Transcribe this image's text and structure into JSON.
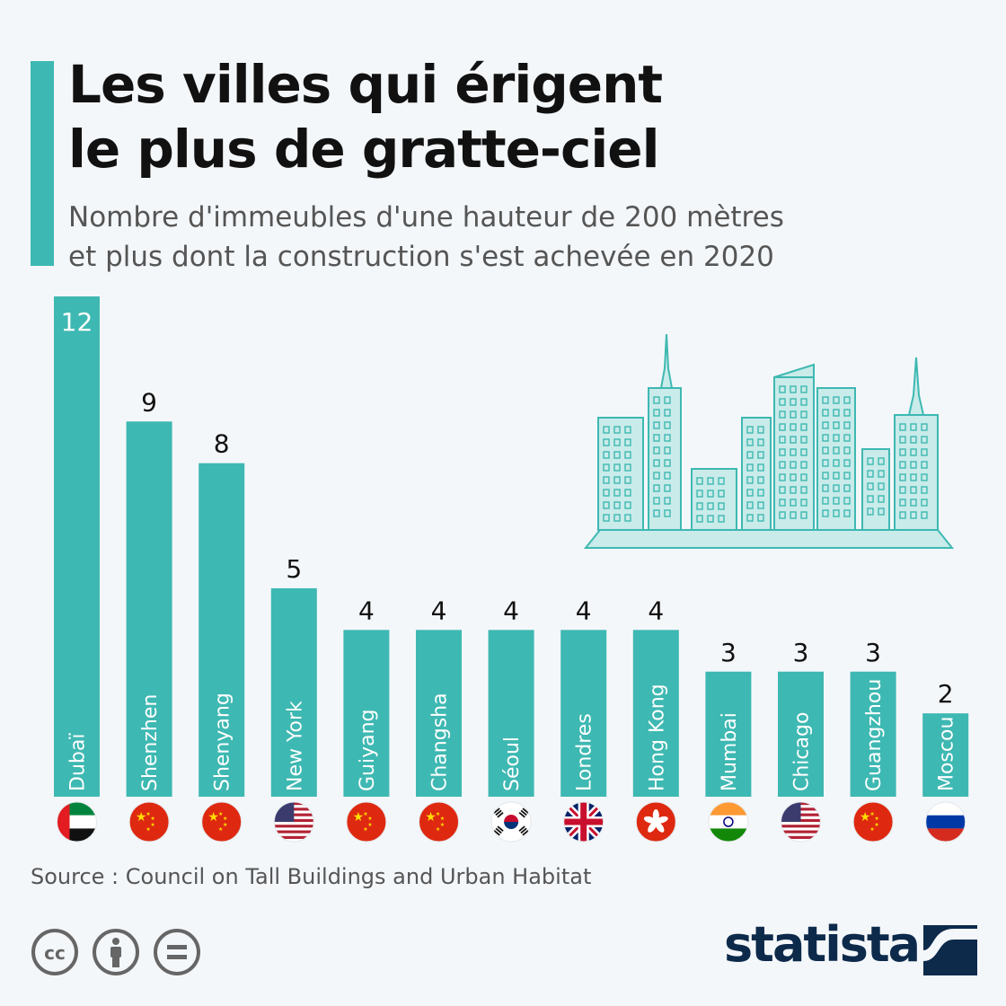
{
  "header": {
    "title_line1": "Les villes qui érigent",
    "title_line2": "le plus de gratte-ciel",
    "subtitle_line1": "Nombre d'immeubles d'une hauteur de 200 mètres",
    "subtitle_line2": "et plus dont la construction s'est achevée en 2020"
  },
  "colors": {
    "bar": "#3eb8b2",
    "accent": "#3eb8b2",
    "city": "#c9ebe9",
    "city_stroke": "#3eb8b2",
    "logo": "#0d2a4b"
  },
  "chart_data": {
    "type": "bar",
    "categories": [
      "Dubaï",
      "Shenzhen",
      "Shenyang",
      "New York",
      "Guiyang",
      "Changsha",
      "Séoul",
      "Londres",
      "Hong Kong",
      "Mumbai",
      "Chicago",
      "Guangzhou",
      "Moscou"
    ],
    "values": [
      12,
      9,
      8,
      5,
      4,
      4,
      4,
      4,
      4,
      3,
      3,
      3,
      2
    ],
    "flags": [
      "uae-flag-icon",
      "china-flag-icon",
      "china-flag-icon",
      "usa-flag-icon",
      "china-flag-icon",
      "china-flag-icon",
      "south-korea-flag-icon",
      "uk-flag-icon",
      "hong-kong-flag-icon",
      "india-flag-icon",
      "usa-flag-icon",
      "china-flag-icon",
      "russia-flag-icon"
    ],
    "ylim": [
      0,
      12
    ],
    "grid": false,
    "legend": "none"
  },
  "footer": {
    "source": "Source : Council on Tall Buildings and Urban Habitat",
    "brand": "statista",
    "license_icons": [
      "cc-icon",
      "by-icon",
      "nd-icon"
    ]
  }
}
